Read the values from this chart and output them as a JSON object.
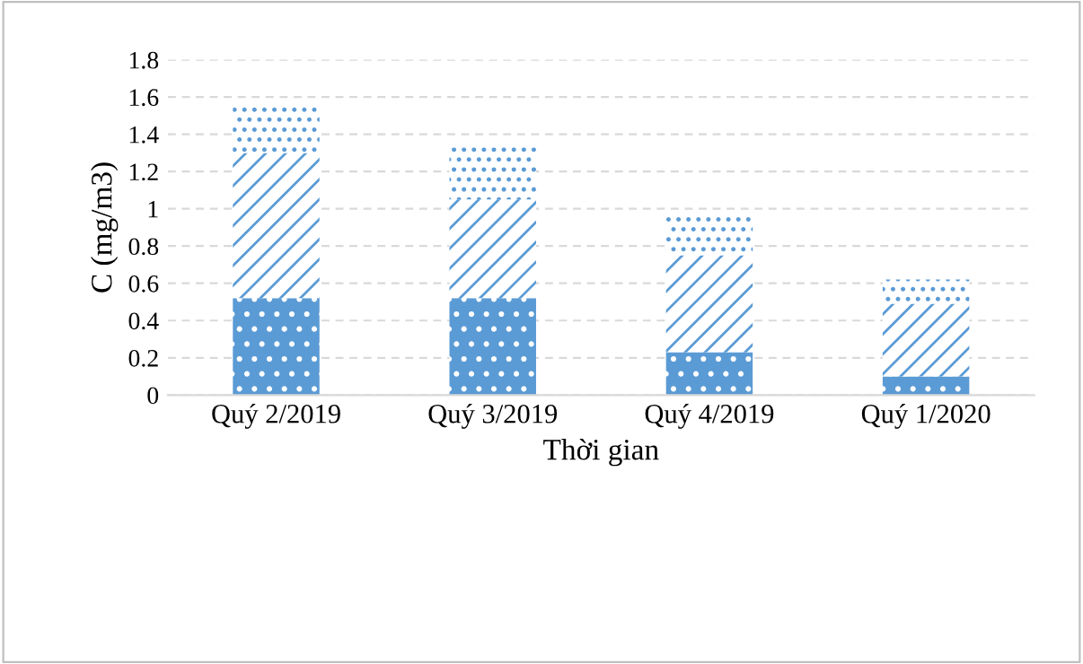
{
  "chart_data": {
    "type": "bar",
    "stacked": true,
    "xlabel": "Thời gian",
    "ylabel": "C (mg/m3)",
    "categories": [
      "Quý 2/2019",
      "Quý 3/2019",
      "Quý 4/2019",
      "Quý 1/2020"
    ],
    "series": [
      {
        "color": "#5b9bd5",
        "values": [
          0.52,
          0.52,
          0.23,
          0.1
        ]
      },
      {
        "color": "#5b9bd5",
        "values": [
          0.78,
          0.53,
          0.52,
          0.39
        ]
      },
      {
        "color": "#5b9bd5",
        "values": [
          0.26,
          0.28,
          0.21,
          0.13
        ]
      }
    ],
    "ylim": [
      0,
      1.8
    ],
    "yticks": [
      0,
      0.2,
      0.4,
      0.6,
      0.8,
      1,
      1.2,
      1.4,
      1.6,
      1.8
    ],
    "grid": "y"
  }
}
